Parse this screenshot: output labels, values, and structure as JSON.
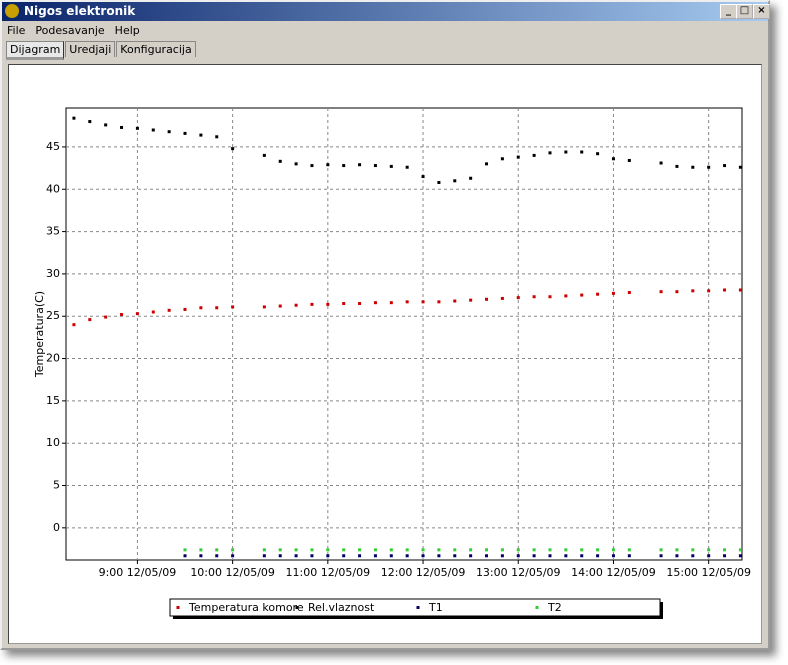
{
  "window": {
    "title": "Nigos elektronik",
    "menu": [
      "File",
      "Podesavanje",
      "Help"
    ],
    "tabs": [
      "Dijagram",
      "Uredjaji",
      "Konfiguracija"
    ]
  },
  "chart_data": {
    "type": "scatter",
    "ylabel": "Temperatura(C)",
    "x": [
      "8:20 12/05/09",
      "8:30 12/05/09",
      "8:40 12/05/09",
      "8:50 12/05/09",
      "9:00 12/05/09",
      "9:10 12/05/09",
      "9:20 12/05/09",
      "9:30 12/05/09",
      "9:40 12/05/09",
      "9:50 12/05/09",
      "10:00 12/05/09",
      "10:10 12/05/09",
      "10:20 12/05/09",
      "10:30 12/05/09",
      "10:40 12/05/09",
      "10:50 12/05/09",
      "11:00 12/05/09",
      "11:10 12/05/09",
      "11:20 12/05/09",
      "11:30 12/05/09",
      "11:40 12/05/09",
      "11:50 12/05/09",
      "12:00 12/05/09",
      "12:10 12/05/09",
      "12:20 12/05/09",
      "12:30 12/05/09",
      "12:40 12/05/09",
      "12:50 12/05/09",
      "13:00 12/05/09",
      "13:10 12/05/09",
      "13:20 12/05/09",
      "13:30 12/05/09",
      "13:40 12/05/09",
      "13:50 12/05/09",
      "14:00 12/05/09",
      "14:10 12/05/09",
      "14:20 12/05/09",
      "14:30 12/05/09",
      "14:40 12/05/09",
      "14:50 12/05/09",
      "15:00 12/05/09",
      "15:10 12/05/09",
      "15:20 12/05/09"
    ],
    "series": [
      {
        "name": "Temperatura komore",
        "color": "#cc0000",
        "values": [
          24.0,
          24.6,
          24.9,
          25.2,
          25.3,
          25.5,
          25.7,
          25.8,
          26.0,
          26.0,
          26.1,
          null,
          26.1,
          26.2,
          26.3,
          26.4,
          26.4,
          26.5,
          26.5,
          26.6,
          26.6,
          26.7,
          26.7,
          26.7,
          26.8,
          26.9,
          27.0,
          27.1,
          27.2,
          27.3,
          27.3,
          27.4,
          27.5,
          27.6,
          27.7,
          27.8,
          null,
          27.9,
          27.9,
          28.0,
          28.0,
          28.1,
          28.1
        ]
      },
      {
        "name": "Rel.vlaznost",
        "color": "#000000",
        "values": [
          48.4,
          48.0,
          47.6,
          47.3,
          47.2,
          47.0,
          46.8,
          46.6,
          46.4,
          46.2,
          44.8,
          null,
          44.0,
          43.3,
          43.0,
          42.8,
          42.9,
          42.8,
          42.9,
          42.8,
          42.7,
          42.6,
          41.5,
          40.8,
          41.0,
          41.3,
          43.0,
          43.6,
          43.8,
          44.0,
          44.3,
          44.4,
          44.4,
          44.2,
          43.6,
          43.4,
          null,
          43.1,
          42.7,
          42.6,
          42.6,
          42.8,
          42.6
        ]
      },
      {
        "name": "T1",
        "color": "#000066",
        "values": [
          null,
          null,
          null,
          null,
          null,
          null,
          null,
          -3.3,
          -3.3,
          -3.3,
          -3.3,
          null,
          -3.3,
          -3.3,
          -3.3,
          -3.3,
          -3.3,
          -3.3,
          -3.3,
          -3.3,
          -3.3,
          -3.3,
          -3.3,
          -3.3,
          -3.3,
          -3.3,
          -3.3,
          -3.3,
          -3.3,
          -3.3,
          -3.3,
          -3.3,
          -3.3,
          -3.3,
          -3.3,
          -3.3,
          null,
          -3.3,
          -3.3,
          -3.3,
          -3.3,
          -3.3,
          -3.3
        ]
      },
      {
        "name": "T2",
        "color": "#33cc33",
        "values": [
          null,
          null,
          null,
          null,
          null,
          null,
          null,
          -2.6,
          -2.6,
          -2.6,
          -2.6,
          null,
          -2.6,
          -2.6,
          -2.6,
          -2.6,
          -2.6,
          -2.6,
          -2.6,
          -2.6,
          -2.6,
          -2.6,
          -2.6,
          -2.6,
          -2.6,
          -2.6,
          -2.6,
          -2.6,
          -2.6,
          -2.6,
          -2.6,
          -2.6,
          -2.6,
          -2.6,
          -2.6,
          -2.6,
          null,
          -2.6,
          -2.6,
          -2.6,
          -2.6,
          -2.6,
          -2.6
        ]
      }
    ],
    "xlim": [
      "8:15 12/05/09",
      "15:21 12/05/09"
    ],
    "xticks": [
      "9:00 12/05/09",
      "10:00 12/05/09",
      "11:00 12/05/09",
      "12:00 12/05/09",
      "13:00 12/05/09",
      "14:00 12/05/09",
      "15:00 12/05/09"
    ],
    "ylim": [
      -3.8,
      49.6
    ],
    "yticks": [
      0,
      5,
      10,
      15,
      20,
      25,
      30,
      35,
      40,
      45
    ],
    "grid": true,
    "legend": "bottom"
  }
}
